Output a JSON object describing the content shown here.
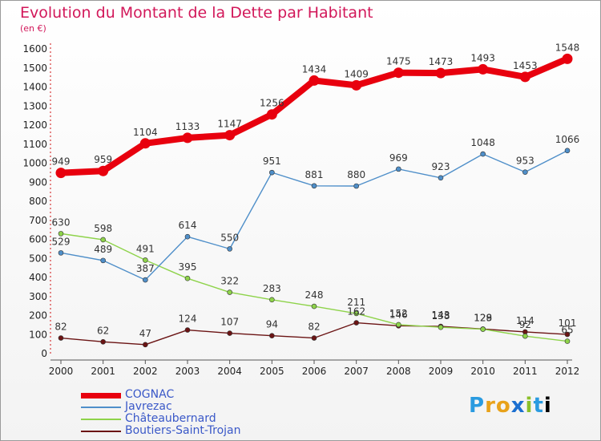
{
  "title": "Evolution du Montant de la Dette par Habitant",
  "subtitle": "(en €)",
  "chart_data": {
    "type": "line",
    "x": [
      "2000",
      "2001",
      "2002",
      "2003",
      "2004",
      "2005",
      "2006",
      "2007",
      "2008",
      "2009",
      "2010",
      "2011",
      "2012"
    ],
    "ylim": [
      0,
      1600
    ],
    "yticks": [
      0,
      100,
      200,
      300,
      400,
      500,
      600,
      700,
      800,
      900,
      1000,
      1100,
      1200,
      1300,
      1400,
      1500,
      1600
    ],
    "grid": false,
    "legend_position": "bottom-left",
    "series": [
      {
        "name": "COGNAC",
        "color": "#e8000e",
        "values": [
          949,
          959,
          1104,
          1133,
          1147,
          1256,
          1434,
          1409,
          1475,
          1473,
          1493,
          1453,
          1548
        ]
      },
      {
        "name": "Javrezac",
        "color": "#4f8fc9",
        "values": [
          529,
          489,
          387,
          614,
          550,
          951,
          881,
          880,
          969,
          923,
          1048,
          953,
          1066
        ]
      },
      {
        "name": "Châteaubernard",
        "color": "#8ed34a",
        "values": [
          630,
          598,
          491,
          395,
          322,
          283,
          248,
          211,
          152,
          138,
          128,
          92,
          65
        ]
      },
      {
        "name": "Boutiers-Saint-Trojan",
        "color": "#6b1414",
        "values": [
          82,
          62,
          47,
          124,
          107,
          94,
          82,
          162,
          146,
          143,
          129,
          114,
          101
        ]
      }
    ]
  },
  "logo": {
    "letters": [
      "P",
      "r",
      "o",
      "x",
      "i",
      "t",
      "i"
    ]
  }
}
